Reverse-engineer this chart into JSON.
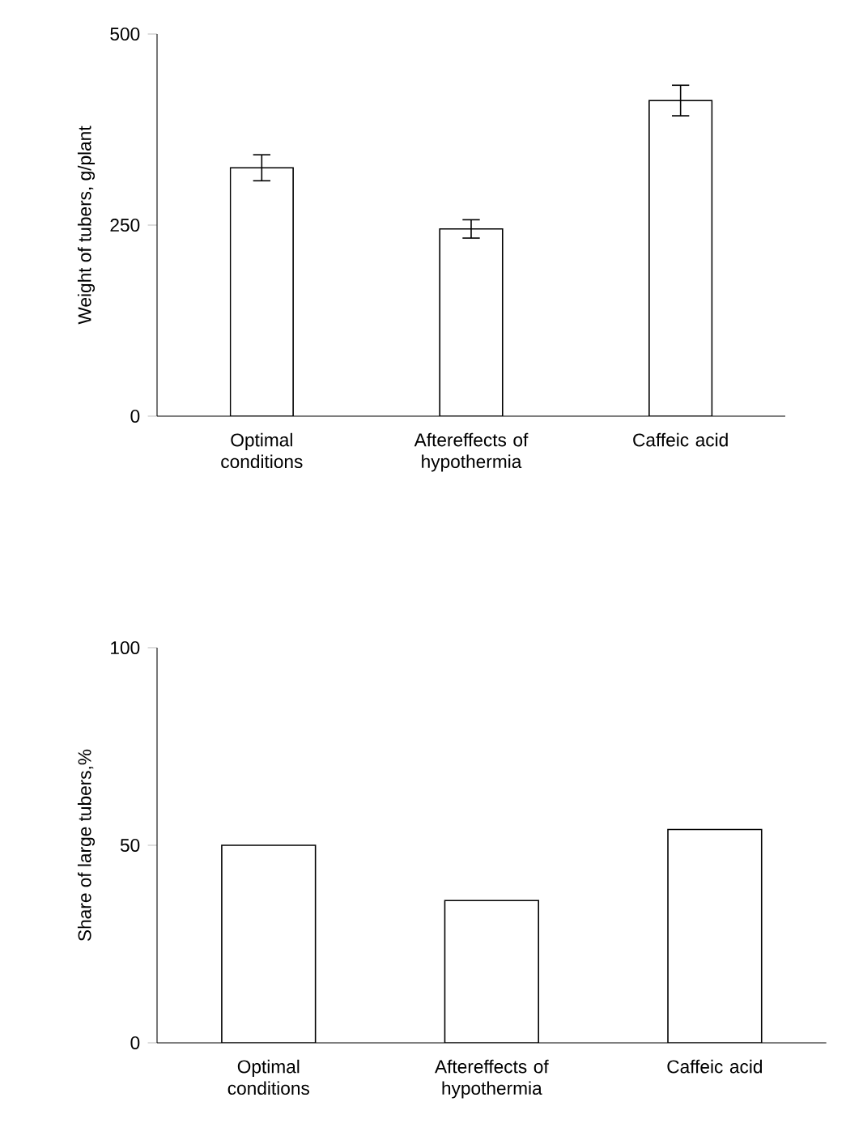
{
  "chart_data": [
    {
      "type": "bar",
      "ylabel": "Weight of tubers, g/plant",
      "categories": [
        "Optimal conditions",
        "Aftereffects of hypothermia",
        "Caffeic acid"
      ],
      "values": [
        325,
        245,
        413
      ],
      "errors": [
        17,
        12,
        20
      ],
      "color": "#ffffff",
      "ylim": [
        0,
        500
      ],
      "yticks": [
        0,
        250,
        500
      ]
    },
    {
      "type": "bar",
      "ylabel": "Share of large tubers,%",
      "categories": [
        "Optimal conditions",
        "Aftereffects of hypothermia",
        "Caffeic acid"
      ],
      "values": [
        50,
        36,
        54
      ],
      "color": "#ffffff",
      "ylim": [
        0,
        100
      ],
      "yticks": [
        0,
        50,
        100
      ]
    }
  ]
}
